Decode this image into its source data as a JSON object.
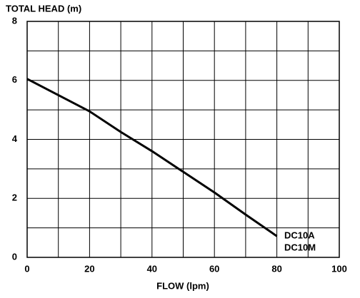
{
  "chart_data": {
    "type": "line",
    "y_label": "TOTAL HEAD (m)",
    "x_label": "FLOW (lpm)",
    "x": [
      0,
      10,
      20,
      30,
      40,
      50,
      60,
      70,
      80
    ],
    "series": [
      {
        "values": [
          6.05,
          5.5,
          4.95,
          4.25,
          3.6,
          2.9,
          2.2,
          1.45,
          0.72
        ],
        "color": "#000000"
      }
    ],
    "curve_labels": [
      "DC10A",
      "DC10M"
    ],
    "xlim": [
      0,
      100
    ],
    "xticks": [
      0,
      20,
      40,
      60,
      80,
      100
    ],
    "x_minor_ticks": [
      10,
      30,
      50,
      70,
      90
    ],
    "ylim": [
      0,
      8
    ],
    "yticks": [
      0,
      2,
      4,
      6,
      8
    ],
    "y_minor_ticks": [
      1,
      3,
      5,
      7
    ],
    "grid": true
  }
}
